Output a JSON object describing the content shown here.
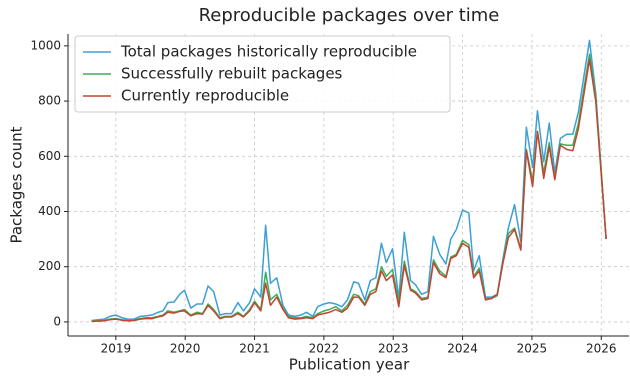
{
  "chart_data": {
    "type": "line",
    "title": "Reproducible packages over time",
    "x_label": "Publication year",
    "y_label": "Packages count",
    "x": [
      2018.65,
      2018.83,
      2018.91,
      2019.0,
      2019.09,
      2019.17,
      2019.26,
      2019.35,
      2019.43,
      2019.52,
      2019.61,
      2019.68,
      2019.75,
      2019.84,
      2019.92,
      2019.99,
      2020.08,
      2020.17,
      2020.25,
      2020.33,
      2020.41,
      2020.5,
      2020.58,
      2020.67,
      2020.76,
      2020.84,
      2020.93,
      2021.0,
      2021.09,
      2021.16,
      2021.23,
      2021.32,
      2021.41,
      2021.49,
      2021.58,
      2021.67,
      2021.75,
      2021.84,
      2021.91,
      2022.0,
      2022.08,
      2022.17,
      2022.26,
      2022.34,
      2022.43,
      2022.5,
      2022.59,
      2022.67,
      2022.75,
      2022.83,
      2022.9,
      2022.99,
      2023.08,
      2023.16,
      2023.25,
      2023.32,
      2023.41,
      2023.5,
      2023.58,
      2023.67,
      2023.76,
      2023.83,
      2023.91,
      2024.0,
      2024.09,
      2024.16,
      2024.24,
      2024.33,
      2024.42,
      2024.5,
      2024.58,
      2024.66,
      2024.75,
      2024.84,
      2024.92,
      2025.01,
      2025.08,
      2025.17,
      2025.25,
      2025.33,
      2025.41,
      2025.5,
      2025.59,
      2025.67,
      2025.83,
      2025.92,
      2026.07
    ],
    "series": [
      {
        "name": "Total packages historically reproducible",
        "color": "#3d9fd6",
        "values": [
          5,
          10,
          20,
          25,
          15,
          10,
          10,
          20,
          22,
          25,
          35,
          40,
          70,
          72,
          100,
          115,
          50,
          65,
          65,
          130,
          110,
          25,
          30,
          30,
          70,
          40,
          70,
          120,
          90,
          350,
          140,
          160,
          60,
          25,
          20,
          25,
          35,
          20,
          55,
          65,
          70,
          65,
          55,
          80,
          145,
          140,
          80,
          150,
          160,
          285,
          215,
          265,
          85,
          325,
          150,
          135,
          100,
          110,
          310,
          245,
          210,
          300,
          335,
          405,
          395,
          185,
          240,
          90,
          90,
          100,
          225,
          340,
          425,
          290,
          705,
          560,
          765,
          580,
          720,
          540,
          665,
          680,
          680,
          760,
          1020,
          830,
          300
        ]
      },
      {
        "name": "Successfully rebuilt packages",
        "color": "#3cae5a",
        "values": [
          3,
          5,
          10,
          12,
          8,
          5,
          6,
          12,
          15,
          15,
          20,
          25,
          40,
          35,
          40,
          45,
          25,
          35,
          30,
          65,
          45,
          15,
          20,
          20,
          35,
          20,
          45,
          75,
          45,
          180,
          80,
          100,
          50,
          20,
          15,
          15,
          20,
          15,
          30,
          40,
          45,
          55,
          40,
          60,
          100,
          95,
          65,
          110,
          120,
          200,
          165,
          190,
          70,
          220,
          120,
          110,
          85,
          90,
          225,
          185,
          165,
          235,
          245,
          295,
          280,
          165,
          195,
          85,
          85,
          95,
          215,
          320,
          340,
          265,
          625,
          510,
          690,
          540,
          650,
          520,
          645,
          640,
          640,
          720,
          970,
          820,
          300
        ]
      },
      {
        "name": "Currently reproducible",
        "color": "#c4452f",
        "values": [
          2,
          4,
          8,
          10,
          6,
          4,
          5,
          10,
          12,
          12,
          18,
          22,
          35,
          32,
          38,
          40,
          22,
          30,
          28,
          60,
          40,
          12,
          18,
          18,
          30,
          18,
          40,
          70,
          40,
          140,
          60,
          90,
          45,
          15,
          10,
          12,
          15,
          12,
          25,
          30,
          35,
          45,
          35,
          50,
          90,
          90,
          60,
          100,
          110,
          185,
          150,
          170,
          55,
          205,
          115,
          105,
          80,
          85,
          215,
          175,
          160,
          230,
          240,
          285,
          270,
          160,
          185,
          80,
          85,
          100,
          210,
          305,
          335,
          260,
          620,
          490,
          690,
          520,
          635,
          515,
          640,
          625,
          620,
          700,
          950,
          800,
          300
        ]
      }
    ],
    "xlim": [
      2018.31,
      2026.4
    ],
    "ylim": [
      -51,
      1043
    ],
    "xticks": [
      2019,
      2020,
      2021,
      2022,
      2023,
      2024,
      2025,
      2026
    ],
    "yticks": [
      0,
      200,
      400,
      600,
      800,
      1000
    ],
    "grid": true,
    "legend": "upper left"
  }
}
